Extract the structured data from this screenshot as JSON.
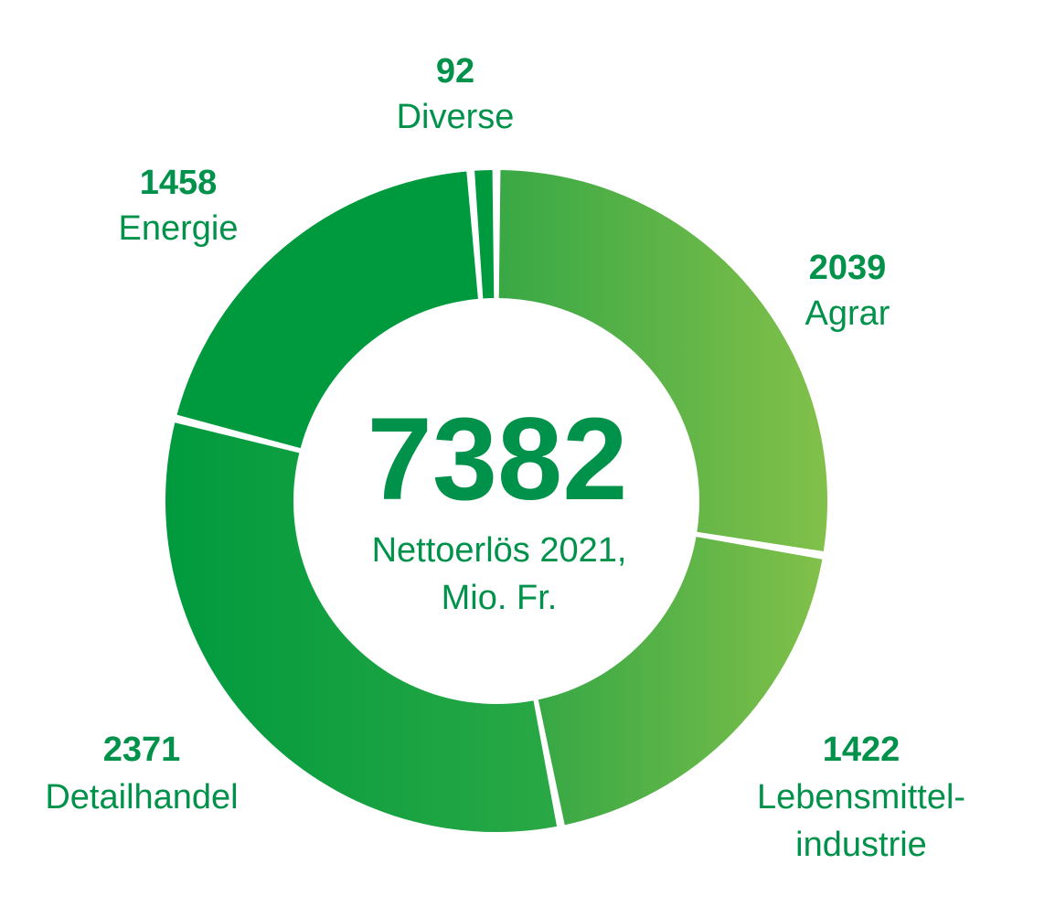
{
  "chart_data": {
    "type": "pie",
    "style": "donut",
    "title": "",
    "total": {
      "value": "7382",
      "caption_line1": "Nettoerlös 2021,",
      "caption_line2": "Mio. Fr."
    },
    "slices": [
      {
        "key": "agrar",
        "value": 2039,
        "value_label": "2039",
        "label_lines": [
          "Agrar"
        ],
        "gradient": [
          "#39a845",
          "#82c04a"
        ]
      },
      {
        "key": "lebensmittel",
        "value": 1422,
        "value_label": "1422",
        "label_lines": [
          "Lebensmittel-",
          "industrie"
        ],
        "gradient": [
          "#36a845",
          "#82c04a"
        ]
      },
      {
        "key": "detailhandel",
        "value": 2371,
        "value_label": "2371",
        "label_lines": [
          "Detailhandel"
        ],
        "gradient": [
          "#009a3e",
          "#2aa845"
        ]
      },
      {
        "key": "energie",
        "value": 1458,
        "value_label": "1458",
        "label_lines": [
          "Energie"
        ],
        "gradient": [
          "#009a3e",
          "#009a3e"
        ]
      },
      {
        "key": "diverse",
        "value": 92,
        "value_label": "92",
        "label_lines": [
          "Diverse"
        ],
        "gradient": [
          "#009a3e",
          "#009a3e"
        ]
      }
    ],
    "colors": {
      "text": "#00924a",
      "background": "#ffffff"
    },
    "legend": "none",
    "labels": "outside"
  }
}
